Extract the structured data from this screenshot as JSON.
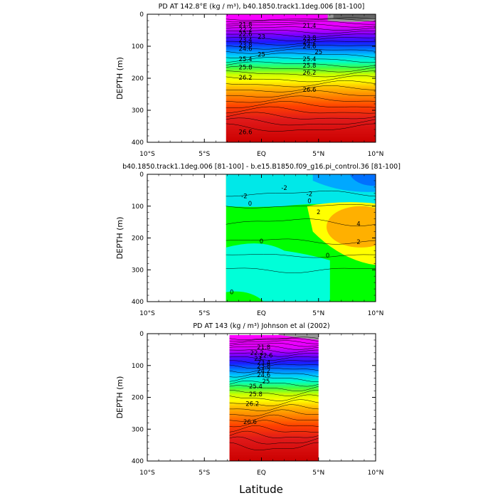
{
  "figure": {
    "xlabel": "Latitude"
  },
  "chart_data": [
    {
      "type": "heatmap",
      "title": "PD AT 142.8°E (kg / m³), b40.1850.track1.1deg.006 [81-100]",
      "ylabel": "DEPTH (m)",
      "xlim": [
        -10,
        10
      ],
      "ylim": [
        400,
        0
      ],
      "data_xrange": [
        -3.1,
        10
      ],
      "xticks": [
        "10°S",
        "5°S",
        "EQ",
        "5°N",
        "10°N"
      ],
      "yticks": [
        "0",
        "100",
        "200",
        "300",
        "400"
      ],
      "colormap": "density",
      "contour_levels": [
        21.4,
        21.8,
        22.2,
        22.6,
        23,
        23.4,
        23.8,
        24.2,
        24.6,
        25,
        25.4,
        25.8,
        26.2,
        26.6
      ],
      "contour_labels": [
        {
          "text": "21.8",
          "x": -1.4,
          "y": 32
        },
        {
          "text": "21.4",
          "x": 4.2,
          "y": 35
        },
        {
          "text": "22.2",
          "x": -1.4,
          "y": 48
        },
        {
          "text": "22.6",
          "x": -1.4,
          "y": 62
        },
        {
          "text": "23",
          "x": 0.0,
          "y": 70
        },
        {
          "text": "23.4",
          "x": -1.4,
          "y": 80
        },
        {
          "text": "23.8",
          "x": -1.4,
          "y": 95
        },
        {
          "text": "24.6",
          "x": -1.4,
          "y": 108
        },
        {
          "text": "23.8",
          "x": 4.2,
          "y": 73
        },
        {
          "text": "24.2",
          "x": 4.2,
          "y": 86
        },
        {
          "text": "24.6",
          "x": 4.2,
          "y": 100
        },
        {
          "text": "25",
          "x": 0.0,
          "y": 126
        },
        {
          "text": "25",
          "x": 5.0,
          "y": 118
        },
        {
          "text": "25.4",
          "x": -1.4,
          "y": 140
        },
        {
          "text": "25.4",
          "x": 4.2,
          "y": 140
        },
        {
          "text": "25.8",
          "x": -1.4,
          "y": 165
        },
        {
          "text": "25.8",
          "x": 4.2,
          "y": 160
        },
        {
          "text": "26.2",
          "x": -1.4,
          "y": 198
        },
        {
          "text": "26.2",
          "x": 4.2,
          "y": 182
        },
        {
          "text": "26.6",
          "x": 4.2,
          "y": 236
        },
        {
          "text": "26.6",
          "x": -1.4,
          "y": 368
        }
      ]
    },
    {
      "type": "heatmap",
      "title": "b40.1850.track1.1deg.006 [81-100] - b.e15.B1850.f09_g16.pi_control.36 [81-100]",
      "ylabel": "DEPTH (m)",
      "xlim": [
        -10,
        10
      ],
      "ylim": [
        400,
        0
      ],
      "data_xrange": [
        -3.1,
        10
      ],
      "xticks": [
        "10°S",
        "5°S",
        "EQ",
        "5°N",
        "10°N"
      ],
      "yticks": [
        "0",
        "100",
        "200",
        "300",
        "400"
      ],
      "colormap": "difference",
      "contour_levels": [
        -4,
        -2,
        0,
        2,
        4
      ],
      "contour_labels": [
        {
          "text": "-2",
          "x": 2.0,
          "y": 42
        },
        {
          "text": "-2",
          "x": -1.5,
          "y": 68
        },
        {
          "text": "-2",
          "x": 4.2,
          "y": 62
        },
        {
          "text": "0",
          "x": -1.0,
          "y": 92
        },
        {
          "text": "0",
          "x": 4.2,
          "y": 84
        },
        {
          "text": "2",
          "x": 5.0,
          "y": 118
        },
        {
          "text": "4",
          "x": 8.5,
          "y": 155
        },
        {
          "text": "2",
          "x": 8.5,
          "y": 212
        },
        {
          "text": "0",
          "x": 0.0,
          "y": 210
        },
        {
          "text": "0",
          "x": 5.8,
          "y": 255
        },
        {
          "text": "0",
          "x": -2.6,
          "y": 370
        }
      ]
    },
    {
      "type": "heatmap",
      "title": "PD AT 143 (kg / m³) Johnson et al (2002)",
      "ylabel": "DEPTH (m)",
      "xlim": [
        -10,
        10
      ],
      "ylim": [
        400,
        0
      ],
      "data_xrange": [
        -2.8,
        5
      ],
      "xticks": [
        "10°S",
        "5°S",
        "EQ",
        "5°N",
        "10°N"
      ],
      "yticks": [
        "0",
        "100",
        "200",
        "300",
        "400"
      ],
      "colormap": "density",
      "contour_levels": [
        21.8,
        22.2,
        22.6,
        23,
        23.4,
        23.8,
        24.2,
        24.6,
        25,
        25.4,
        25.8,
        26.2,
        26.6
      ],
      "contour_labels": [
        {
          "text": "21.8",
          "x": 0.2,
          "y": 42
        },
        {
          "text": "22.2",
          "x": -0.4,
          "y": 60
        },
        {
          "text": "22.6",
          "x": 0.4,
          "y": 68
        },
        {
          "text": "23",
          "x": -0.3,
          "y": 78
        },
        {
          "text": "23.4",
          "x": 0.2,
          "y": 90
        },
        {
          "text": "23.8",
          "x": 0.2,
          "y": 102
        },
        {
          "text": "24.2",
          "x": 0.2,
          "y": 116
        },
        {
          "text": "24.6",
          "x": 0.2,
          "y": 130
        },
        {
          "text": "25",
          "x": 0.4,
          "y": 150
        },
        {
          "text": "25.4",
          "x": -0.5,
          "y": 165
        },
        {
          "text": "25.8",
          "x": -0.5,
          "y": 190
        },
        {
          "text": "26.2",
          "x": -0.8,
          "y": 220
        },
        {
          "text": "26.6",
          "x": -1.0,
          "y": 277
        }
      ]
    }
  ]
}
